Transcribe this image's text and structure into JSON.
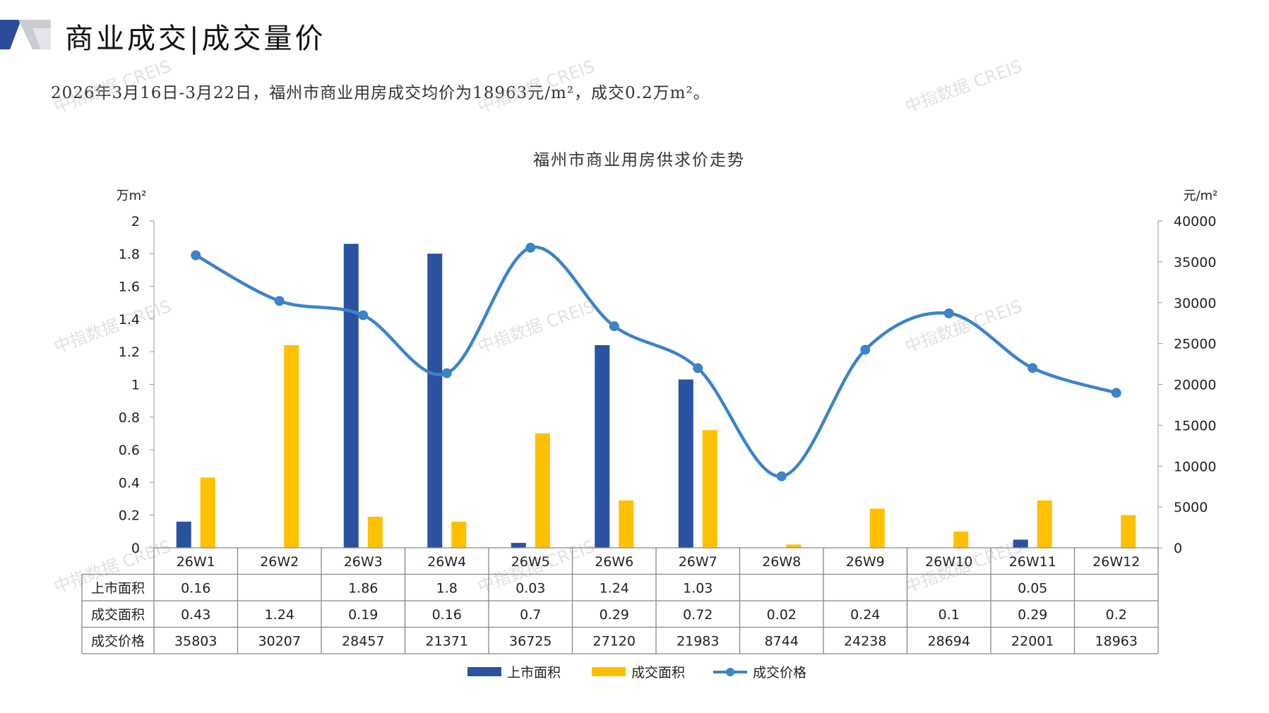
{
  "page": {
    "title": "商业成交|成交量价",
    "summary": "2026年3月16日-3月22日，福州市商业用房成交均价为18963元/m²，成交0.2万m²。",
    "watermark": "中指数据 CREIS"
  },
  "colors": {
    "listed": "#2a52a0",
    "sold": "#ffc000",
    "price": "#3c83c8",
    "logo_dark": "#2c4a9a",
    "logo_light": "#c9ccd3"
  },
  "chart_data": {
    "type": "bar",
    "title": "福州市商业用房供求价走势",
    "y_left_unit": "万m²",
    "y_right_unit": "元/m²",
    "categories": [
      "26W1",
      "26W2",
      "26W3",
      "26W4",
      "26W5",
      "26W6",
      "26W7",
      "26W8",
      "26W9",
      "26W10",
      "26W11",
      "26W12"
    ],
    "y_left_ticks": [
      "0",
      "0.2",
      "0.4",
      "0.6",
      "0.8",
      "1",
      "1.2",
      "1.4",
      "1.6",
      "1.8",
      "2"
    ],
    "y_right_ticks": [
      "0",
      "5000",
      "10000",
      "15000",
      "20000",
      "25000",
      "30000",
      "35000",
      "40000"
    ],
    "ylim_left": [
      0,
      2
    ],
    "ylim_right": [
      0,
      40000
    ],
    "series": [
      {
        "name": "上市面积",
        "type": "bar",
        "axis": "left",
        "color": "#2a52a0",
        "values": [
          0.16,
          null,
          1.86,
          1.8,
          0.03,
          1.24,
          1.03,
          null,
          null,
          null,
          0.05,
          null
        ]
      },
      {
        "name": "成交面积",
        "type": "bar",
        "axis": "left",
        "color": "#ffc000",
        "values": [
          0.43,
          1.24,
          0.19,
          0.16,
          0.7,
          0.29,
          0.72,
          0.02,
          0.24,
          0.1,
          0.29,
          0.2
        ]
      },
      {
        "name": "成交价格",
        "type": "line",
        "axis": "right",
        "color": "#3c83c8",
        "values": [
          35803,
          30207,
          28457,
          21371,
          36725,
          27120,
          21983,
          8744,
          24238,
          28694,
          22001,
          18963
        ]
      }
    ],
    "table": {
      "rows": [
        {
          "label": "上市面积",
          "cells": [
            "0.16",
            "",
            "1.86",
            "1.8",
            "0.03",
            "1.24",
            "1.03",
            "",
            "",
            "",
            "0.05",
            ""
          ]
        },
        {
          "label": "成交面积",
          "cells": [
            "0.43",
            "1.24",
            "0.19",
            "0.16",
            "0.7",
            "0.29",
            "0.72",
            "0.02",
            "0.24",
            "0.1",
            "0.29",
            "0.2"
          ]
        },
        {
          "label": "成交价格",
          "cells": [
            "35803",
            "30207",
            "28457",
            "21371",
            "36725",
            "27120",
            "21983",
            "8744",
            "24238",
            "28694",
            "22001",
            "18963"
          ]
        }
      ]
    },
    "legend": {
      "position": "bottom",
      "items": [
        {
          "label": "上市面积",
          "kind": "bar",
          "color": "#2a52a0"
        },
        {
          "label": "成交面积",
          "kind": "bar",
          "color": "#ffc000"
        },
        {
          "label": "成交价格",
          "kind": "line",
          "color": "#3c83c8"
        }
      ]
    }
  }
}
